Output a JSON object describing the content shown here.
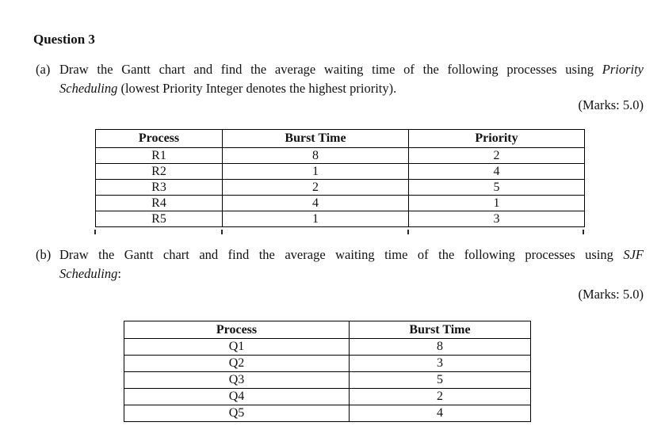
{
  "title": "Question 3",
  "part_a": {
    "label": "(a)",
    "line1_text": "Draw the Gantt chart and find the average waiting time of the following processes using",
    "line1_italic": "Priority",
    "line2_italic": "Scheduling",
    "line2_text": "(lowest Priority Integer denotes the highest priority).",
    "marks": "(Marks: 5.0)"
  },
  "part_b": {
    "label": "(b)",
    "line1_text": "Draw the Gantt chart and find the average waiting time of the following processes using",
    "line1_italic": "SJF",
    "line2_italic": "Scheduling",
    "line2_text": ":",
    "marks": "(Marks: 5.0)"
  },
  "table_a": {
    "headers": [
      "Process",
      "Burst Time",
      "Priority"
    ],
    "rows": [
      [
        "R1",
        "8",
        "2"
      ],
      [
        "R2",
        "1",
        "4"
      ],
      [
        "R3",
        "2",
        "5"
      ],
      [
        "R4",
        "4",
        "1"
      ],
      [
        "R5",
        "1",
        "3"
      ]
    ]
  },
  "table_b": {
    "headers": [
      "Process",
      "Burst Time"
    ],
    "rows": [
      [
        "Q1",
        "8"
      ],
      [
        "Q2",
        "3"
      ],
      [
        "Q3",
        "5"
      ],
      [
        "Q4",
        "2"
      ],
      [
        "Q5",
        "4"
      ]
    ]
  }
}
